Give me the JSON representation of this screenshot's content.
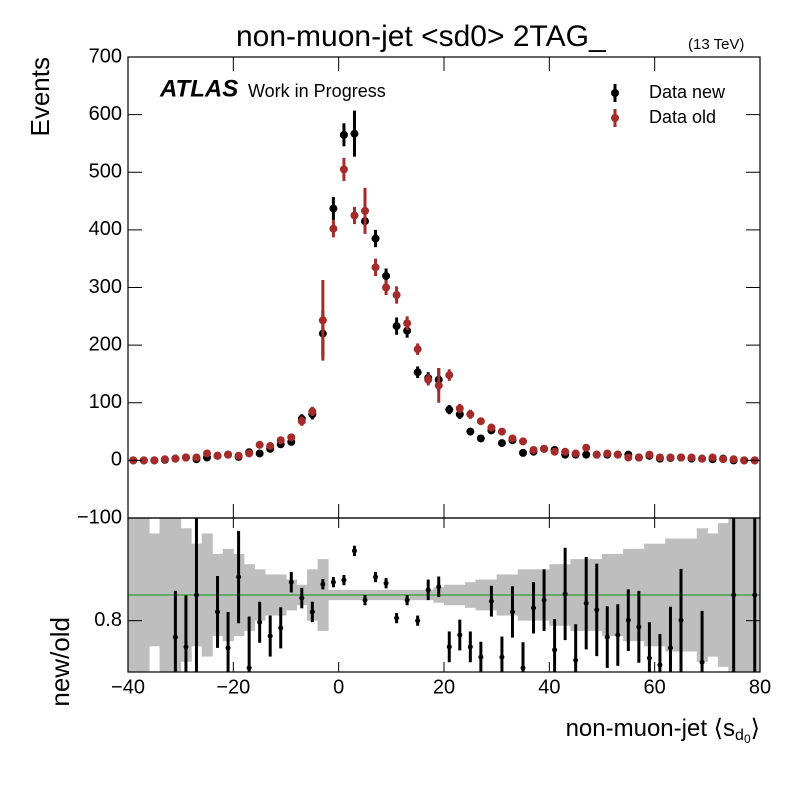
{
  "chart_data": {
    "type": "errorbar",
    "title": "non-muon-jet <sd0> 2TAG_",
    "energy_label": "(13 TeV)",
    "atlas_label": "ATLAS",
    "atlas_sublabel": "Work in Progress",
    "ylabel": "Events",
    "xlabel": {
      "main": "non-muon-jet ⟨s",
      "sub": "d",
      "subsub": "0",
      "end": "⟩"
    },
    "legend": "upper right",
    "x": [
      -39,
      -37,
      -35,
      -33,
      -31,
      -29,
      -27,
      -25,
      -23,
      -21,
      -19,
      -17,
      -15,
      -13,
      -11,
      -9,
      -7,
      -5,
      -3,
      -1,
      1,
      3,
      5,
      7,
      9,
      11,
      13,
      15,
      17,
      19,
      21,
      23,
      25,
      27,
      29,
      31,
      33,
      35,
      37,
      39,
      41,
      43,
      45,
      47,
      49,
      51,
      53,
      55,
      57,
      59,
      61,
      63,
      65,
      67,
      69,
      71,
      73,
      75,
      77,
      79
    ],
    "series": [
      {
        "name": "Data new",
        "color": "#000000",
        "values": [
          0,
          0,
          0,
          1,
          3,
          5,
          2,
          5,
          8,
          10,
          6,
          14,
          12,
          20,
          28,
          32,
          72,
          80,
          220,
          437,
          565,
          567,
          415,
          385,
          320,
          233,
          225,
          153,
          143,
          140,
          88,
          80,
          50,
          38,
          52,
          30,
          35,
          13,
          15,
          20,
          18,
          10,
          10,
          10,
          10,
          10,
          10,
          10,
          5,
          8,
          3,
          4,
          5,
          3,
          3,
          2,
          3,
          0,
          0,
          0
        ],
        "errors": [
          3,
          3,
          3,
          3,
          3,
          3,
          4,
          4,
          4,
          4,
          4,
          4,
          5,
          5,
          6,
          6,
          8,
          9,
          40,
          20,
          20,
          40,
          20,
          15,
          13,
          15,
          12,
          10,
          10,
          20,
          8,
          8,
          6,
          5,
          6,
          5,
          5,
          4,
          4,
          5,
          4,
          4,
          4,
          4,
          4,
          4,
          4,
          4,
          4,
          4,
          3,
          3,
          3,
          3,
          3,
          3,
          3,
          3,
          3,
          3
        ]
      },
      {
        "name": "Data old",
        "color": "#a52a2a",
        "values": [
          0,
          0,
          0,
          2,
          3,
          5,
          5,
          12,
          8,
          10,
          8,
          12,
          27,
          25,
          35,
          40,
          68,
          85,
          243,
          402,
          505,
          425,
          433,
          335,
          300,
          287,
          238,
          193,
          140,
          130,
          148,
          90,
          80,
          68,
          57,
          50,
          38,
          33,
          18,
          20,
          15,
          15,
          12,
          22,
          10,
          12,
          10,
          5,
          5,
          10,
          5,
          5,
          5,
          5,
          3,
          5,
          2,
          2,
          0,
          0
        ],
        "errors": [
          3,
          3,
          3,
          3,
          3,
          3,
          4,
          5,
          4,
          4,
          4,
          4,
          6,
          5,
          6,
          6,
          8,
          8,
          70,
          15,
          20,
          15,
          40,
          15,
          13,
          15,
          12,
          10,
          10,
          30,
          10,
          8,
          8,
          6,
          6,
          6,
          5,
          5,
          4,
          5,
          4,
          4,
          4,
          5,
          4,
          4,
          4,
          4,
          4,
          4,
          3,
          3,
          3,
          3,
          3,
          3,
          3,
          3,
          3,
          3
        ]
      }
    ],
    "xlim": [
      -40,
      80
    ],
    "xticks": [
      {
        "value": -40,
        "label": "−40"
      },
      {
        "value": -20,
        "label": "−20"
      },
      0,
      20,
      40,
      60,
      80
    ],
    "ylim": [
      -100,
      700
    ],
    "yticks": [
      {
        "value": -100,
        "label": "−100"
      },
      0,
      100,
      200,
      300,
      400,
      500,
      600,
      700
    ],
    "ratio": {
      "ylabel": "new/old",
      "ylim": [
        0.7,
        1.0
      ],
      "yticks": [
        0.8
      ],
      "ref_line": 0.85,
      "ref_color": "#2ca02c",
      "band_color": "#bebebe",
      "point_color": "#000000",
      "values": [
        null,
        null,
        null,
        null,
        0.768,
        0.749,
        0.85,
        null,
        0.817,
        0.747,
        0.885,
        0.708,
        0.797,
        0.77,
        0.786,
        0.875,
        0.844,
        0.817,
        0.871,
        0.875,
        0.879,
        0.936,
        0.84,
        0.885,
        0.873,
        0.805,
        0.84,
        0.8,
        0.86,
        0.866,
        0.749,
        0.772,
        0.749,
        0.729,
        0.838,
        0.729,
        0.817,
        0.708,
        0.825,
        0.84,
        0.743,
        0.852,
        0.723,
        0.834,
        0.821,
        0.768,
        0.772,
        0.801,
        0.788,
        0.727,
        0.714,
        0.747,
        0.801,
        null,
        0.719,
        null,
        null,
        0.85,
        null,
        0.85
      ],
      "errors": [
        null,
        null,
        null,
        null,
        0.09,
        0.1,
        0.15,
        null,
        0.07,
        0.07,
        0.09,
        0.1,
        0.04,
        0.04,
        0.04,
        0.02,
        0.02,
        0.02,
        0.01,
        0.01,
        0.01,
        0.01,
        0.01,
        0.01,
        0.01,
        0.01,
        0.01,
        0.01,
        0.02,
        0.02,
        0.03,
        0.03,
        0.03,
        0.03,
        0.03,
        0.04,
        0.05,
        0.05,
        0.05,
        0.06,
        0.06,
        0.09,
        0.07,
        0.09,
        0.09,
        0.06,
        0.06,
        0.06,
        0.07,
        0.07,
        0.06,
        0.08,
        0.1,
        null,
        0.1,
        null,
        null,
        0.2,
        null,
        0.2
      ],
      "band_low": [
        0.7,
        0.7,
        0.75,
        0.7,
        0.7,
        0.72,
        0.75,
        0.73,
        0.77,
        0.76,
        0.77,
        0.78,
        0.8,
        0.81,
        0.81,
        0.82,
        0.83,
        0.8,
        0.78,
        0.84,
        0.84,
        0.84,
        0.84,
        0.84,
        0.84,
        0.84,
        0.84,
        0.84,
        0.84,
        0.835,
        0.83,
        0.83,
        0.825,
        0.82,
        0.82,
        0.81,
        0.81,
        0.8,
        0.8,
        0.8,
        0.79,
        0.79,
        0.78,
        0.78,
        0.78,
        0.77,
        0.77,
        0.76,
        0.76,
        0.75,
        0.75,
        0.74,
        0.74,
        0.74,
        0.72,
        0.73,
        0.71,
        0.7,
        0.7,
        0.7
      ],
      "band_high": [
        1.0,
        1.0,
        0.97,
        1.0,
        1.0,
        0.98,
        0.95,
        0.97,
        0.93,
        0.94,
        0.93,
        0.91,
        0.9,
        0.89,
        0.89,
        0.88,
        0.87,
        0.9,
        0.92,
        0.86,
        0.86,
        0.86,
        0.86,
        0.86,
        0.86,
        0.86,
        0.86,
        0.86,
        0.86,
        0.865,
        0.87,
        0.87,
        0.875,
        0.88,
        0.88,
        0.89,
        0.89,
        0.9,
        0.9,
        0.9,
        0.91,
        0.91,
        0.92,
        0.92,
        0.92,
        0.93,
        0.93,
        0.94,
        0.94,
        0.95,
        0.95,
        0.96,
        0.96,
        0.96,
        0.98,
        0.97,
        0.99,
        1.0,
        1.0,
        1.0
      ]
    }
  }
}
